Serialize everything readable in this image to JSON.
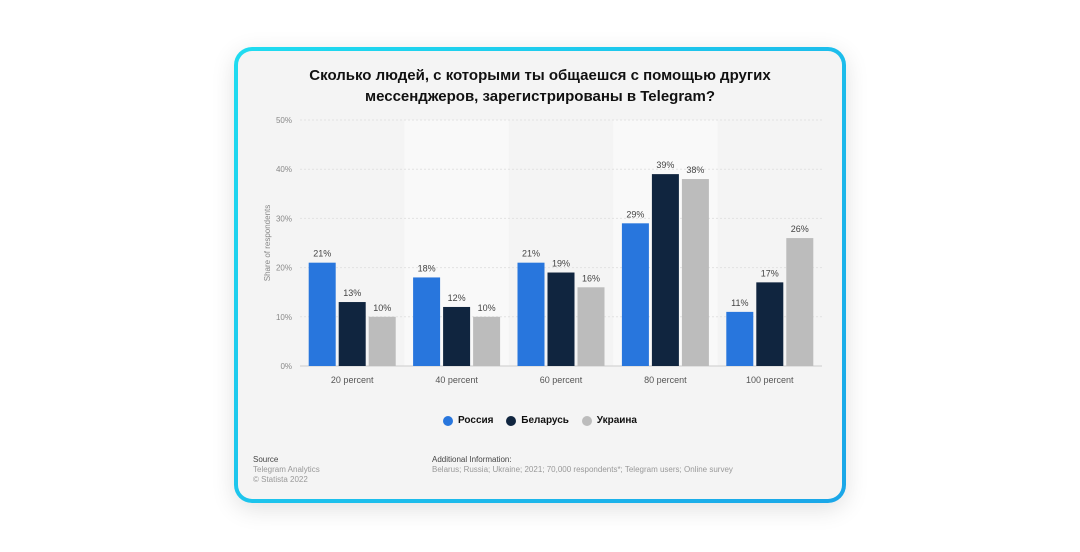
{
  "chart_data": {
    "type": "bar",
    "title": "Сколько людей, с которыми ты общаешся с помощью других мессенджеров, зарегистрированы в Telegram?",
    "ylabel": "Share of respondents",
    "xlabel": "",
    "ylim": [
      0,
      50
    ],
    "yticks": [
      "0%",
      "10%",
      "20%",
      "30%",
      "40%",
      "50%"
    ],
    "categories": [
      "20 percent",
      "40 percent",
      "60 percent",
      "80 percent",
      "100 percent"
    ],
    "series": [
      {
        "name": "Россия",
        "color": "#2876dd",
        "values": [
          21,
          18,
          21,
          29,
          11
        ]
      },
      {
        "name": "Беларусь",
        "color": "#10253f",
        "values": [
          13,
          12,
          19,
          39,
          17
        ]
      },
      {
        "name": "Украина",
        "color": "#bcbcbc",
        "values": [
          10,
          10,
          16,
          38,
          26
        ]
      }
    ],
    "grid": true,
    "legend": "bottom"
  },
  "footer": {
    "source_label": "Source",
    "source_lines": [
      "Telegram Analytics",
      "© Statista 2022"
    ],
    "info_label": "Additional Information:",
    "info_text": "Belarus; Russia; Ukraine; 2021; 70,000 respondents*; Telegram users; Online survey"
  }
}
